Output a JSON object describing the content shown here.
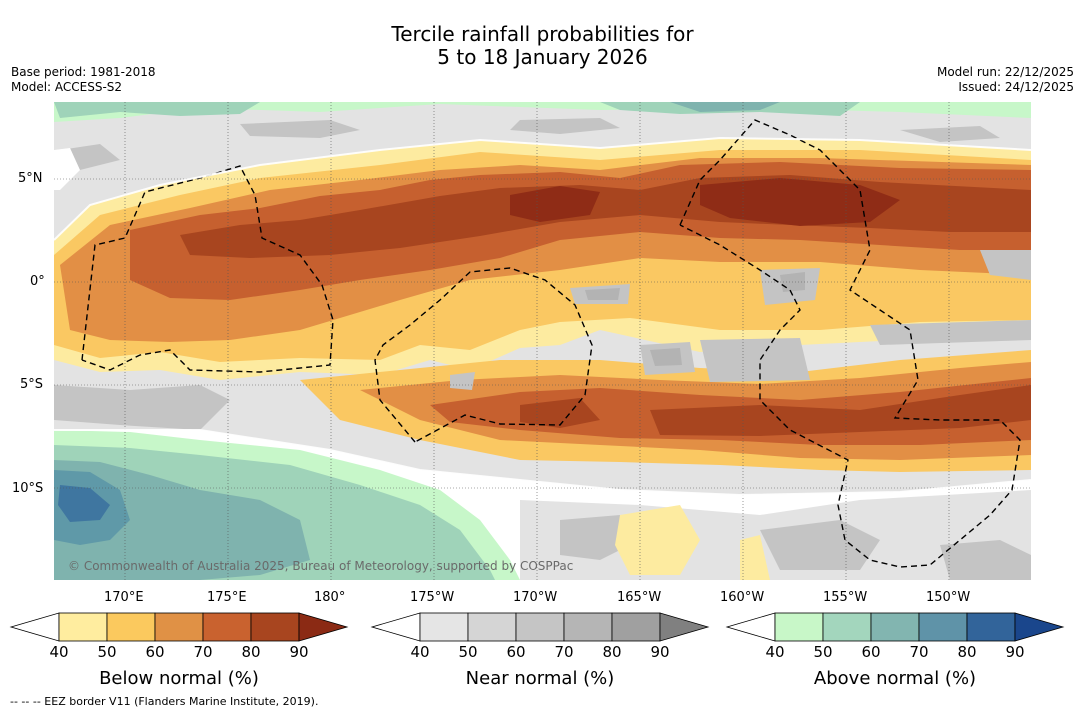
{
  "title": {
    "line1": "Tercile rainfall probabilities for",
    "line2": "5 to 18 January 2026"
  },
  "meta": {
    "base_period": "Base period: 1981-2018",
    "model": "Model: ACCESS-S2",
    "model_run": "Model run: 22/12/2025",
    "issued": "Issued: 24/12/2025"
  },
  "map": {
    "lat_labels": [
      "5°N",
      "0°",
      "5°S",
      "10°S"
    ],
    "lon_labels": [
      "170°E",
      "175°E",
      "180°",
      "175°W",
      "170°W",
      "165°W",
      "160°W",
      "155°W",
      "150°W"
    ],
    "copyright": "© Commonwealth of Australia 2025, Bureau of Meteorology, supported by COSPPac",
    "colors": {
      "ocean_white": "#ffffff",
      "near_40": "#e3e3e3",
      "near_50": "#d3d3d3",
      "near_60": "#c4c4c4",
      "near_70": "#b3b3b3",
      "below_40": "#fdeba0",
      "below_50": "#fac862",
      "below_60": "#e28f45",
      "below_70": "#c6602f",
      "below_80": "#a8451f",
      "below_90": "#8f2c16",
      "above_40": "#c7f7c9",
      "above_50": "#9fd3b9",
      "above_60": "#7fb3ae",
      "above_70": "#5f99a8",
      "above_80": "#3f76a0"
    }
  },
  "colorbars": [
    {
      "label": "Below normal (%)",
      "ticks": [
        "40",
        "50",
        "60",
        "70",
        "80",
        "90"
      ],
      "colors": [
        "#ffed9f",
        "#fbc95e",
        "#e09145",
        "#c9622f",
        "#a8451f",
        "#8b2a14"
      ]
    },
    {
      "label": "Near normal (%)",
      "ticks": [
        "40",
        "50",
        "60",
        "70",
        "80",
        "90"
      ],
      "colors": [
        "#e5e5e5",
        "#d5d5d5",
        "#c5c5c5",
        "#b5b5b5",
        "#a0a0a0",
        "#808080"
      ]
    },
    {
      "label": "Above normal (%)",
      "ticks": [
        "40",
        "50",
        "60",
        "70",
        "80",
        "90"
      ],
      "colors": [
        "#c8f7c8",
        "#a3d6bd",
        "#82b5b0",
        "#5f93a8",
        "#32649a",
        "#1a468c"
      ]
    }
  ],
  "footer": "--  --  -- EEZ border V11 (Flanders Marine Institute, 2019)."
}
